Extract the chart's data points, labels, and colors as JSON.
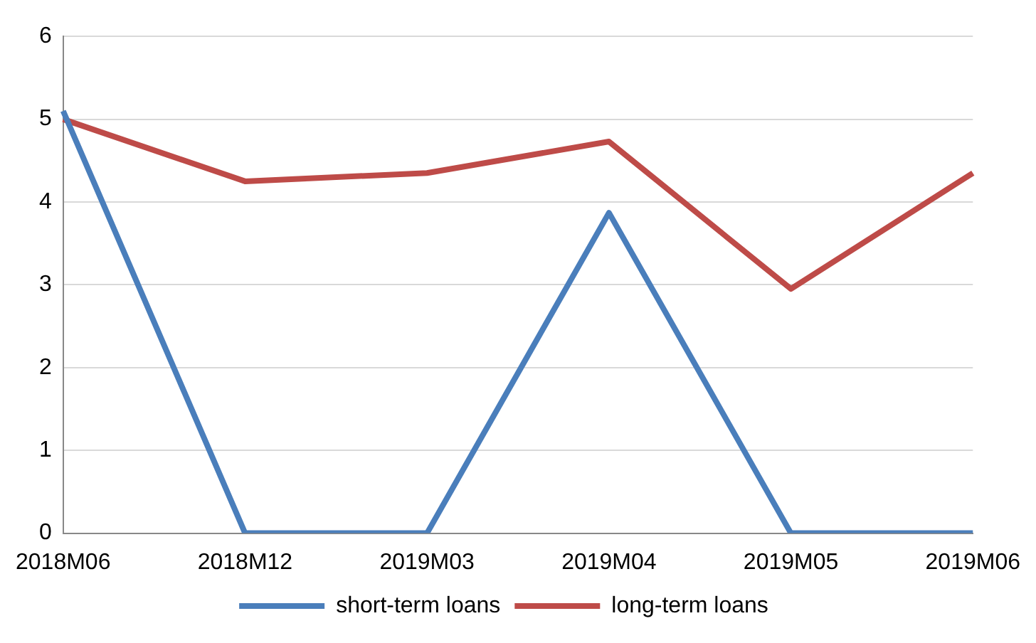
{
  "chart_data": {
    "type": "line",
    "categories": [
      "2018M06",
      "2018M12",
      "2019M03",
      "2019M04",
      "2019M05",
      "2019M06"
    ],
    "series": [
      {
        "name": "short-term loans",
        "color": "#4a7ebb",
        "values": [
          5.1,
          0,
          0,
          3.87,
          0,
          0
        ]
      },
      {
        "name": "long-term loans",
        "color": "#be4b48",
        "values": [
          5.0,
          4.25,
          4.35,
          4.73,
          2.95,
          4.35
        ]
      }
    ],
    "ylim": [
      0,
      6
    ],
    "yticks": [
      0,
      1,
      2,
      3,
      4,
      5,
      6
    ],
    "grid": "y",
    "legend": "bottom",
    "marker": "none",
    "line_style": "solid"
  }
}
